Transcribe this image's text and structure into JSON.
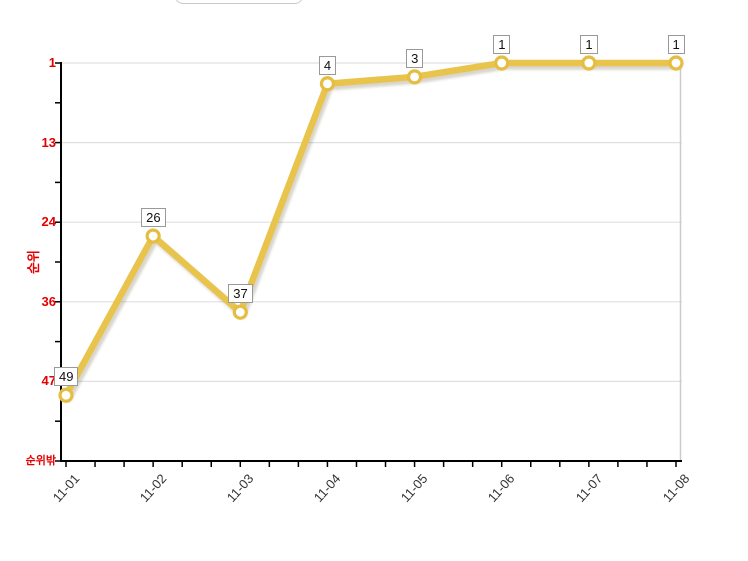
{
  "chart_data": {
    "type": "line",
    "title": "",
    "ylabel": "순위",
    "x": [
      "11-01",
      "11-02",
      "11-03",
      "11-04",
      "11-05",
      "11-06",
      "11-07",
      "11-08"
    ],
    "series": [
      {
        "name": "순위",
        "values": [
          49,
          26,
          37,
          4,
          3,
          1,
          1,
          1
        ]
      }
    ],
    "point_labels": [
      "49",
      "26",
      "37",
      "4",
      "3",
      "1",
      "1",
      "1"
    ],
    "y_axis": {
      "tick_labels": [
        "1",
        "13",
        "24",
        "36",
        "47",
        "순위밖"
      ],
      "min": 1,
      "max": 58.5,
      "inverted": true,
      "grid": true
    },
    "x_axis": {
      "minor_ticks_per_interval": 2,
      "label_angle_deg": -48
    },
    "legend": {
      "visible": false
    },
    "colors": {
      "line": "#e9c44d",
      "line_shadow": "rgba(110,100,70,0.30)",
      "marker_fill": "#ffffff",
      "marker_stroke": "#e5bd41",
      "axis": "#000000",
      "grid": "#e0e0e0",
      "plot_right_border": "#cccccc",
      "y_tick_label": "#e40000",
      "x_tick_label": "#333333",
      "point_label_border": "#999999"
    }
  }
}
